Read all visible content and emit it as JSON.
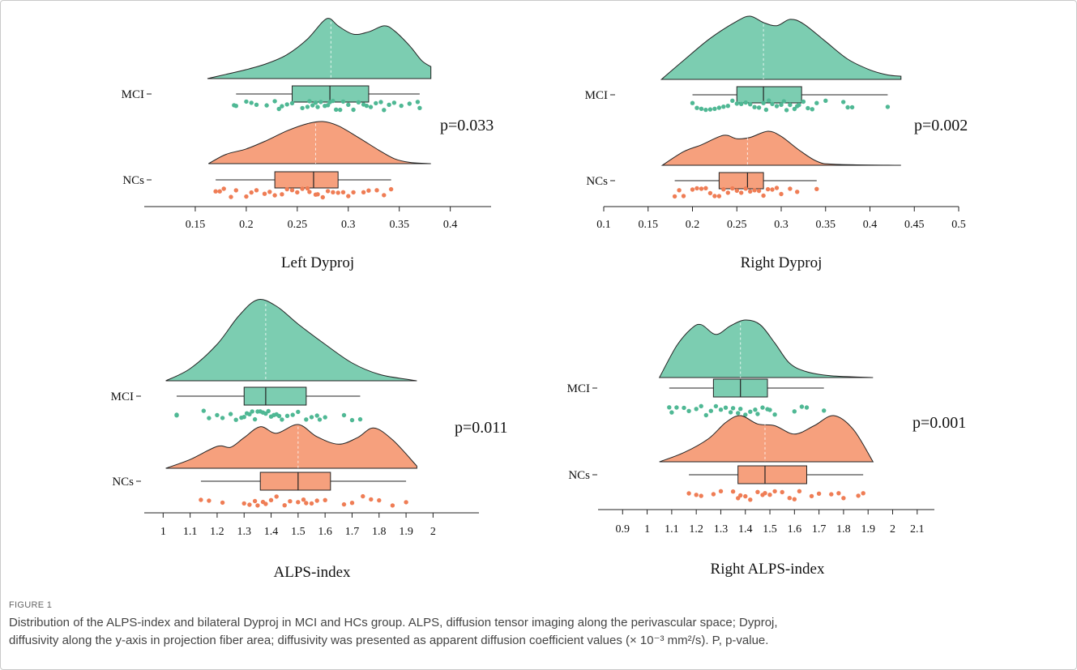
{
  "figure": {
    "label": "FIGURE 1",
    "caption_lines": [
      "Distribution of the ALPS-index and bilateral Dyproj in MCI and HCs group. ALPS, diffusion tensor imaging along the perivascular space; Dyproj,",
      "diffusivity along the y-axis in projection fiber area; diffusivity was presented as apparent diffusion coefficient values (× 10⁻³ mm²/s). P, p-value."
    ]
  },
  "colors": {
    "mci": "#7ccdb1",
    "mci_point": "#4fb894",
    "ncs": "#f6a07d",
    "ncs_point": "#ef7d55",
    "line": "#222222"
  },
  "chart_data": [
    {
      "type": "raincloud",
      "xlabel": "Left Dyproj",
      "xticks": [
        0.15,
        0.2,
        0.25,
        0.3,
        0.35,
        0.4
      ],
      "xlim": [
        0.1,
        0.44
      ],
      "p_label": "p=0.033",
      "groups": [
        {
          "name": "MCI",
          "min": 0.19,
          "q1": 0.245,
          "median": 0.282,
          "q3": 0.32,
          "max": 0.37,
          "mean": 0.283,
          "range": [
            0.162,
            0.381
          ],
          "density": [
            [
              0.162,
              0.0
            ],
            [
              0.18,
              0.07
            ],
            [
              0.2,
              0.15
            ],
            [
              0.22,
              0.25
            ],
            [
              0.24,
              0.4
            ],
            [
              0.26,
              0.66
            ],
            [
              0.275,
              0.95
            ],
            [
              0.282,
              1.0
            ],
            [
              0.29,
              0.88
            ],
            [
              0.305,
              0.74
            ],
            [
              0.32,
              0.78
            ],
            [
              0.335,
              0.88
            ],
            [
              0.345,
              0.8
            ],
            [
              0.36,
              0.55
            ],
            [
              0.372,
              0.3
            ],
            [
              0.381,
              0.2
            ]
          ],
          "points": [
            0.188,
            0.19,
            0.2,
            0.205,
            0.21,
            0.22,
            0.228,
            0.232,
            0.235,
            0.24,
            0.245,
            0.255,
            0.26,
            0.262,
            0.265,
            0.268,
            0.27,
            0.273,
            0.277,
            0.28,
            0.282,
            0.285,
            0.288,
            0.292,
            0.295,
            0.3,
            0.305,
            0.31,
            0.315,
            0.318,
            0.322,
            0.327,
            0.332,
            0.335,
            0.34,
            0.345,
            0.352,
            0.36,
            0.368,
            0.37
          ]
        },
        {
          "name": "NCs",
          "min": 0.17,
          "q1": 0.228,
          "median": 0.266,
          "q3": 0.29,
          "max": 0.342,
          "mean": 0.268,
          "range": [
            0.163,
            0.381
          ],
          "density": [
            [
              0.163,
              0.0
            ],
            [
              0.18,
              0.22
            ],
            [
              0.2,
              0.35
            ],
            [
              0.22,
              0.55
            ],
            [
              0.24,
              0.78
            ],
            [
              0.26,
              0.95
            ],
            [
              0.275,
              1.0
            ],
            [
              0.29,
              0.9
            ],
            [
              0.31,
              0.62
            ],
            [
              0.33,
              0.32
            ],
            [
              0.345,
              0.12
            ],
            [
              0.36,
              0.03
            ],
            [
              0.381,
              0.0
            ]
          ],
          "points": [
            0.17,
            0.174,
            0.178,
            0.185,
            0.19,
            0.2,
            0.205,
            0.21,
            0.218,
            0.223,
            0.228,
            0.235,
            0.24,
            0.245,
            0.25,
            0.255,
            0.26,
            0.262,
            0.268,
            0.27,
            0.275,
            0.28,
            0.285,
            0.29,
            0.295,
            0.3,
            0.305,
            0.315,
            0.32,
            0.328,
            0.335,
            0.342
          ]
        }
      ]
    },
    {
      "type": "raincloud",
      "xlabel": "Right Dyproj",
      "xticks": [
        0.1,
        0.15,
        0.2,
        0.25,
        0.3,
        0.35,
        0.4,
        0.45,
        0.5
      ],
      "xlim": [
        0.1,
        0.5
      ],
      "p_label": "p=0.002",
      "groups": [
        {
          "name": "MCI",
          "min": 0.2,
          "q1": 0.25,
          "median": 0.28,
          "q3": 0.323,
          "max": 0.42,
          "mean": 0.28,
          "range": [
            0.165,
            0.435
          ],
          "density": [
            [
              0.165,
              0.0
            ],
            [
              0.19,
              0.3
            ],
            [
              0.22,
              0.65
            ],
            [
              0.25,
              0.92
            ],
            [
              0.265,
              1.0
            ],
            [
              0.28,
              0.9
            ],
            [
              0.295,
              0.85
            ],
            [
              0.31,
              0.95
            ],
            [
              0.325,
              0.88
            ],
            [
              0.35,
              0.6
            ],
            [
              0.375,
              0.32
            ],
            [
              0.4,
              0.15
            ],
            [
              0.42,
              0.07
            ],
            [
              0.435,
              0.05
            ]
          ],
          "points": [
            0.2,
            0.205,
            0.21,
            0.215,
            0.22,
            0.225,
            0.23,
            0.235,
            0.24,
            0.245,
            0.25,
            0.255,
            0.26,
            0.265,
            0.27,
            0.275,
            0.28,
            0.283,
            0.286,
            0.29,
            0.295,
            0.3,
            0.303,
            0.306,
            0.31,
            0.315,
            0.318,
            0.32,
            0.325,
            0.33,
            0.335,
            0.34,
            0.35,
            0.37,
            0.375,
            0.38,
            0.42
          ]
        },
        {
          "name": "NCs",
          "min": 0.18,
          "q1": 0.23,
          "median": 0.262,
          "q3": 0.28,
          "max": 0.34,
          "mean": 0.262,
          "range": [
            0.166,
            0.435
          ],
          "density": [
            [
              0.166,
              0.0
            ],
            [
              0.19,
              0.4
            ],
            [
              0.21,
              0.6
            ],
            [
              0.235,
              0.88
            ],
            [
              0.25,
              0.78
            ],
            [
              0.265,
              0.82
            ],
            [
              0.285,
              1.0
            ],
            [
              0.3,
              0.85
            ],
            [
              0.32,
              0.45
            ],
            [
              0.34,
              0.12
            ],
            [
              0.36,
              0.03
            ],
            [
              0.435,
              0.0
            ]
          ],
          "points": [
            0.18,
            0.185,
            0.19,
            0.2,
            0.205,
            0.21,
            0.215,
            0.22,
            0.225,
            0.23,
            0.235,
            0.24,
            0.245,
            0.25,
            0.255,
            0.26,
            0.265,
            0.27,
            0.275,
            0.28,
            0.285,
            0.29,
            0.295,
            0.3,
            0.31,
            0.318,
            0.34
          ]
        }
      ]
    },
    {
      "type": "raincloud",
      "xlabel": "ALPS-index",
      "xticks": [
        1,
        1.1,
        1.2,
        1.3,
        1.4,
        1.5,
        1.6,
        1.7,
        1.8,
        1.9,
        2
      ],
      "xlim": [
        0.93,
        2.17
      ],
      "p_label": "p=0.011",
      "groups": [
        {
          "name": "MCI",
          "min": 1.05,
          "q1": 1.3,
          "median": 1.38,
          "q3": 1.53,
          "max": 1.73,
          "mean": 1.38,
          "range": [
            1.01,
            1.94
          ],
          "density": [
            [
              1.01,
              0.0
            ],
            [
              1.1,
              0.15
            ],
            [
              1.2,
              0.45
            ],
            [
              1.28,
              0.8
            ],
            [
              1.35,
              1.0
            ],
            [
              1.42,
              0.92
            ],
            [
              1.5,
              0.7
            ],
            [
              1.6,
              0.45
            ],
            [
              1.7,
              0.22
            ],
            [
              1.8,
              0.08
            ],
            [
              1.9,
              0.02
            ],
            [
              1.94,
              0.0
            ]
          ],
          "points": [
            1.05,
            1.05,
            1.15,
            1.17,
            1.2,
            1.22,
            1.25,
            1.27,
            1.29,
            1.3,
            1.31,
            1.32,
            1.33,
            1.34,
            1.35,
            1.36,
            1.37,
            1.38,
            1.39,
            1.4,
            1.41,
            1.42,
            1.43,
            1.44,
            1.46,
            1.48,
            1.5,
            1.53,
            1.55,
            1.57,
            1.58,
            1.6,
            1.67,
            1.7,
            1.73
          ]
        },
        {
          "name": "NCs",
          "min": 1.14,
          "q1": 1.36,
          "median": 1.5,
          "q3": 1.62,
          "max": 1.9,
          "mean": 1.5,
          "range": [
            1.01,
            1.94
          ],
          "density": [
            [
              1.01,
              0.0
            ],
            [
              1.1,
              0.2
            ],
            [
              1.2,
              0.5
            ],
            [
              1.25,
              0.48
            ],
            [
              1.3,
              0.7
            ],
            [
              1.36,
              0.95
            ],
            [
              1.42,
              0.8
            ],
            [
              1.5,
              1.0
            ],
            [
              1.57,
              0.72
            ],
            [
              1.65,
              0.55
            ],
            [
              1.72,
              0.7
            ],
            [
              1.78,
              0.92
            ],
            [
              1.85,
              0.65
            ],
            [
              1.94,
              0.05
            ]
          ],
          "points": [
            1.14,
            1.17,
            1.22,
            1.3,
            1.32,
            1.34,
            1.35,
            1.37,
            1.38,
            1.4,
            1.42,
            1.45,
            1.47,
            1.5,
            1.52,
            1.53,
            1.55,
            1.57,
            1.6,
            1.67,
            1.7,
            1.74,
            1.77,
            1.8,
            1.85,
            1.9
          ]
        }
      ]
    },
    {
      "type": "raincloud",
      "xlabel": "Right ALPS-index",
      "xticks": [
        0.9,
        1,
        1.1,
        1.2,
        1.3,
        1.4,
        1.5,
        1.6,
        1.7,
        1.8,
        1.9,
        2,
        2.1
      ],
      "xlim": [
        0.8,
        2.17
      ],
      "p_label": "p=0.001",
      "groups": [
        {
          "name": "MCI",
          "min": 1.09,
          "q1": 1.27,
          "median": 1.38,
          "q3": 1.49,
          "max": 1.72,
          "mean": 1.38,
          "range": [
            1.05,
            1.92
          ],
          "density": [
            [
              1.05,
              0.0
            ],
            [
              1.12,
              0.55
            ],
            [
              1.18,
              0.85
            ],
            [
              1.22,
              0.92
            ],
            [
              1.28,
              0.75
            ],
            [
              1.34,
              0.9
            ],
            [
              1.4,
              1.0
            ],
            [
              1.46,
              0.92
            ],
            [
              1.52,
              0.6
            ],
            [
              1.58,
              0.25
            ],
            [
              1.65,
              0.1
            ],
            [
              1.75,
              0.03
            ],
            [
              1.92,
              0.0
            ]
          ],
          "points": [
            1.09,
            1.1,
            1.12,
            1.15,
            1.17,
            1.2,
            1.22,
            1.24,
            1.26,
            1.28,
            1.3,
            1.32,
            1.34,
            1.35,
            1.37,
            1.38,
            1.4,
            1.42,
            1.44,
            1.45,
            1.47,
            1.49,
            1.5,
            1.52,
            1.6,
            1.63,
            1.65,
            1.72
          ]
        },
        {
          "name": "NCs",
          "min": 1.17,
          "q1": 1.37,
          "median": 1.48,
          "q3": 1.65,
          "max": 1.88,
          "mean": 1.48,
          "range": [
            1.05,
            1.92
          ],
          "density": [
            [
              1.05,
              0.0
            ],
            [
              1.15,
              0.2
            ],
            [
              1.25,
              0.5
            ],
            [
              1.32,
              0.85
            ],
            [
              1.38,
              1.0
            ],
            [
              1.45,
              0.82
            ],
            [
              1.52,
              0.78
            ],
            [
              1.6,
              0.6
            ],
            [
              1.68,
              0.78
            ],
            [
              1.76,
              1.0
            ],
            [
              1.84,
              0.7
            ],
            [
              1.92,
              0.0
            ]
          ],
          "points": [
            1.17,
            1.2,
            1.22,
            1.27,
            1.3,
            1.35,
            1.37,
            1.38,
            1.4,
            1.42,
            1.45,
            1.47,
            1.48,
            1.5,
            1.52,
            1.55,
            1.58,
            1.6,
            1.62,
            1.67,
            1.7,
            1.75,
            1.78,
            1.8,
            1.86,
            1.88
          ]
        }
      ]
    }
  ]
}
